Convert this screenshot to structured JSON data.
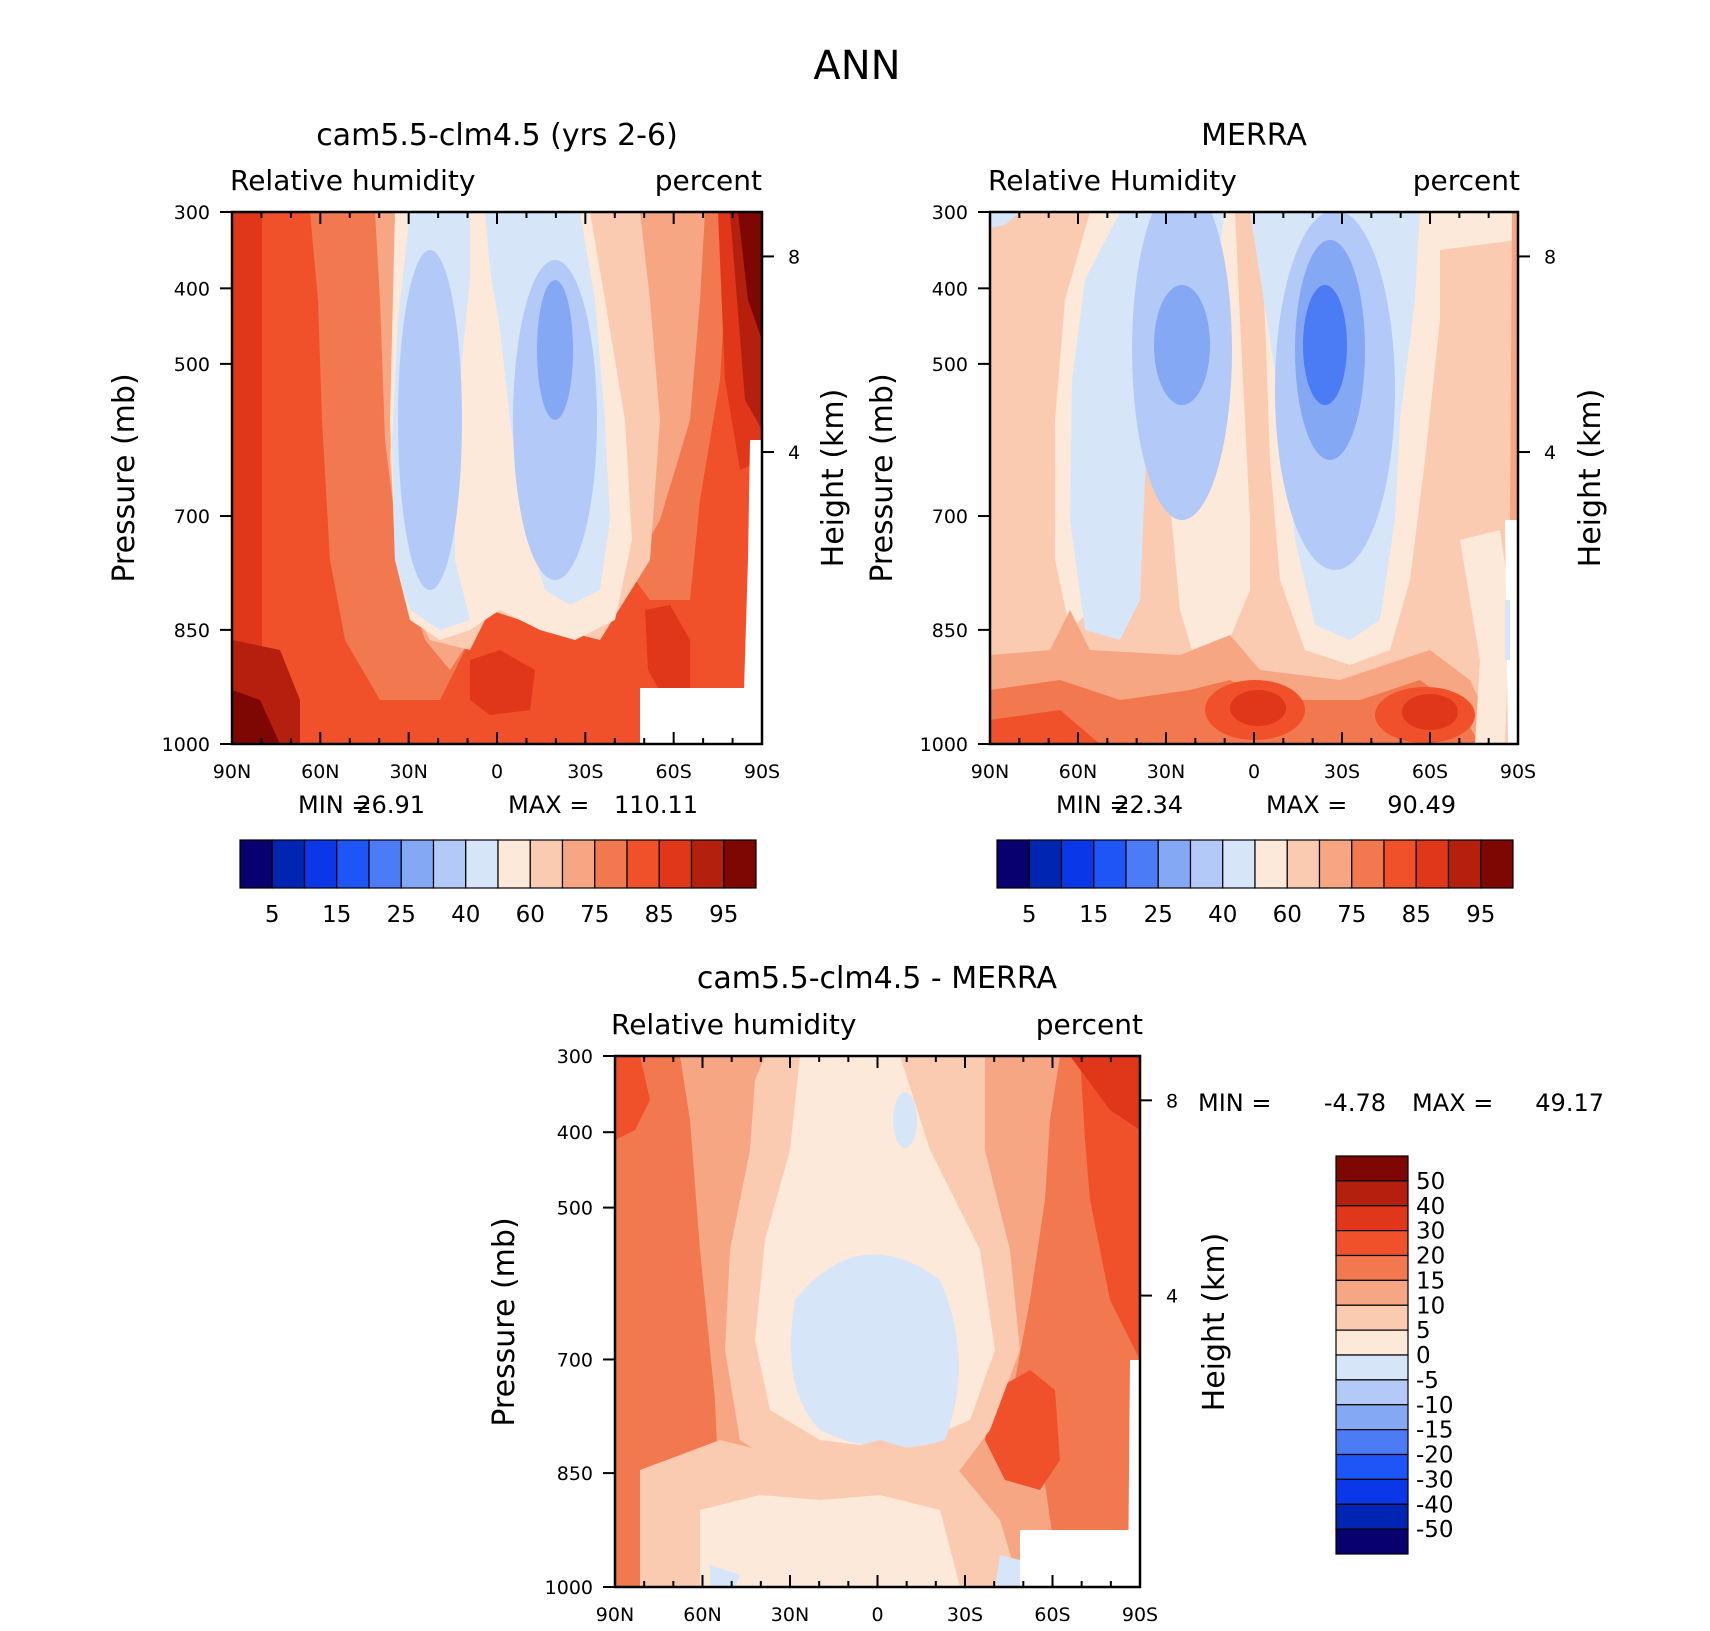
{
  "figure": {
    "title": "ANN"
  },
  "colors": {
    "levels": [
      "#08006f",
      "#0025b3",
      "#0a38e8",
      "#1e55f6",
      "#4b7bf5",
      "#85a8f5",
      "#b3c9f8",
      "#d6e6f8",
      "#fde9da",
      "#fbcbb1",
      "#f7a684",
      "#f2784f",
      "#f0512a",
      "#e0361a",
      "#b51f0e",
      "#7e0603"
    ],
    "axis": "#000000"
  },
  "chart_data": [
    {
      "type": "contour",
      "id": "model",
      "title": "cam5.5-clm4.5 (yrs 2-6)",
      "left_label": "Relative humidity",
      "right_label": "percent",
      "xlabel": "",
      "ylabel": "Pressure (mb)",
      "y2label": "Height (km)",
      "x_ticks": [
        "90N",
        "60N",
        "30N",
        "0",
        "30S",
        "60S",
        "90S"
      ],
      "y_ticks": [
        "300",
        "400",
        "500",
        "700",
        "850",
        "1000"
      ],
      "y2_ticks": [
        "8",
        "4"
      ],
      "min_label": "MIN =",
      "min": "26.91",
      "max_label": "MAX =",
      "max": "110.11",
      "colorbar_labels": [
        "5",
        "15",
        "25",
        "40",
        "60",
        "75",
        "85",
        "95"
      ]
    },
    {
      "type": "contour",
      "id": "obs",
      "title": "MERRA",
      "left_label": "Relative Humidity",
      "right_label": "percent",
      "xlabel": "",
      "ylabel": "Pressure (mb)",
      "y2label": "Height (km)",
      "x_ticks": [
        "90N",
        "60N",
        "30N",
        "0",
        "30S",
        "60S",
        "90S"
      ],
      "y_ticks": [
        "300",
        "400",
        "500",
        "700",
        "850",
        "1000"
      ],
      "y2_ticks": [
        "8",
        "4"
      ],
      "min_label": "MIN =",
      "min": "22.34",
      "max_label": "MAX =",
      "max": "90.49",
      "colorbar_labels": [
        "5",
        "15",
        "25",
        "40",
        "60",
        "75",
        "85",
        "95"
      ]
    },
    {
      "type": "contour",
      "id": "diff",
      "title": "cam5.5-clm4.5 - MERRA",
      "left_label": "Relative humidity",
      "right_label": "percent",
      "xlabel": "",
      "ylabel": "Pressure (mb)",
      "y2label": "Height (km)",
      "x_ticks": [
        "90N",
        "60N",
        "30N",
        "0",
        "30S",
        "60S",
        "90S"
      ],
      "y_ticks": [
        "300",
        "400",
        "500",
        "700",
        "850",
        "1000"
      ],
      "y2_ticks": [
        "8",
        "4"
      ],
      "min_label": "MIN =",
      "min": "-4.78",
      "max_label": "MAX =",
      "max": "49.17",
      "colorbar_labels": [
        "50",
        "40",
        "30",
        "20",
        "15",
        "10",
        "5",
        "0",
        "-5",
        "-10",
        "-15",
        "-20",
        "-30",
        "-40",
        "-50"
      ]
    }
  ]
}
